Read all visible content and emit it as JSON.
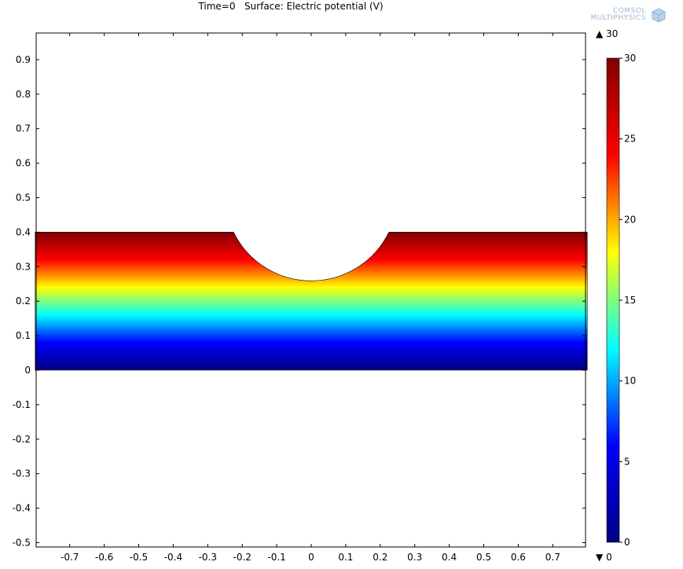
{
  "title": "Time=0   Surface: Electric potential (V)",
  "logo": {
    "line1": "COMSOL",
    "line2": "MULTIPHYSICS",
    "icon": "comsol-cube-icon"
  },
  "colorbar": {
    "label_max": "30",
    "label_min": "0",
    "max_marker_icon": "triangle-up-icon",
    "min_marker_icon": "triangle-down-icon",
    "ticks": [
      0,
      5,
      10,
      15,
      20,
      25,
      30
    ],
    "colormap": "rainbow",
    "colors": [
      "#000080",
      "#0000ff",
      "#00ffff",
      "#ffff00",
      "#ff0000",
      "#800000"
    ]
  },
  "chart_data": {
    "type": "heatmap",
    "title": "Time=0   Surface: Electric potential (V)",
    "quantity": "Electric potential (V)",
    "xlim": [
      -0.8,
      0.8
    ],
    "ylim": [
      -0.52,
      1.0
    ],
    "xticks": [
      -0.7,
      -0.6,
      -0.5,
      -0.4,
      -0.3,
      -0.2,
      -0.1,
      0,
      0.1,
      0.2,
      0.3,
      0.4,
      0.5,
      0.6,
      0.7
    ],
    "yticks": [
      -0.5,
      -0.4,
      -0.3,
      -0.2,
      -0.1,
      0,
      0.1,
      0.2,
      0.3,
      0.4,
      0.5,
      0.6,
      0.7,
      0.8,
      0.9
    ],
    "xtick_labels": [
      "-0.7",
      "-0.6",
      "-0.5",
      "-0.4",
      "-0.3",
      "-0.2",
      "-0.1",
      "0",
      "0.1",
      "0.2",
      "0.3",
      "0.4",
      "0.5",
      "0.6",
      "0.7"
    ],
    "ytick_labels": [
      "-0.5",
      "-0.4",
      "-0.3",
      "-0.2",
      "-0.1",
      "0",
      "0.1",
      "0.2",
      "0.3",
      "0.4",
      "0.5",
      "0.6",
      "0.7",
      "0.8",
      "0.9"
    ],
    "color_range": [
      0,
      30
    ],
    "domain": {
      "x_range": [
        -0.8,
        0.8
      ],
      "bottom_y": 0,
      "top_y": 0.4,
      "cutout": {
        "type": "circular-arc",
        "center": [
          0,
          0.55
        ],
        "radius": 0.25,
        "x_extent": [
          -0.225,
          0.225
        ],
        "lowest_y": 0.3
      }
    },
    "field": {
      "value_at_bottom": 0,
      "value_at_top_boundary": 30
    },
    "grid": false
  }
}
